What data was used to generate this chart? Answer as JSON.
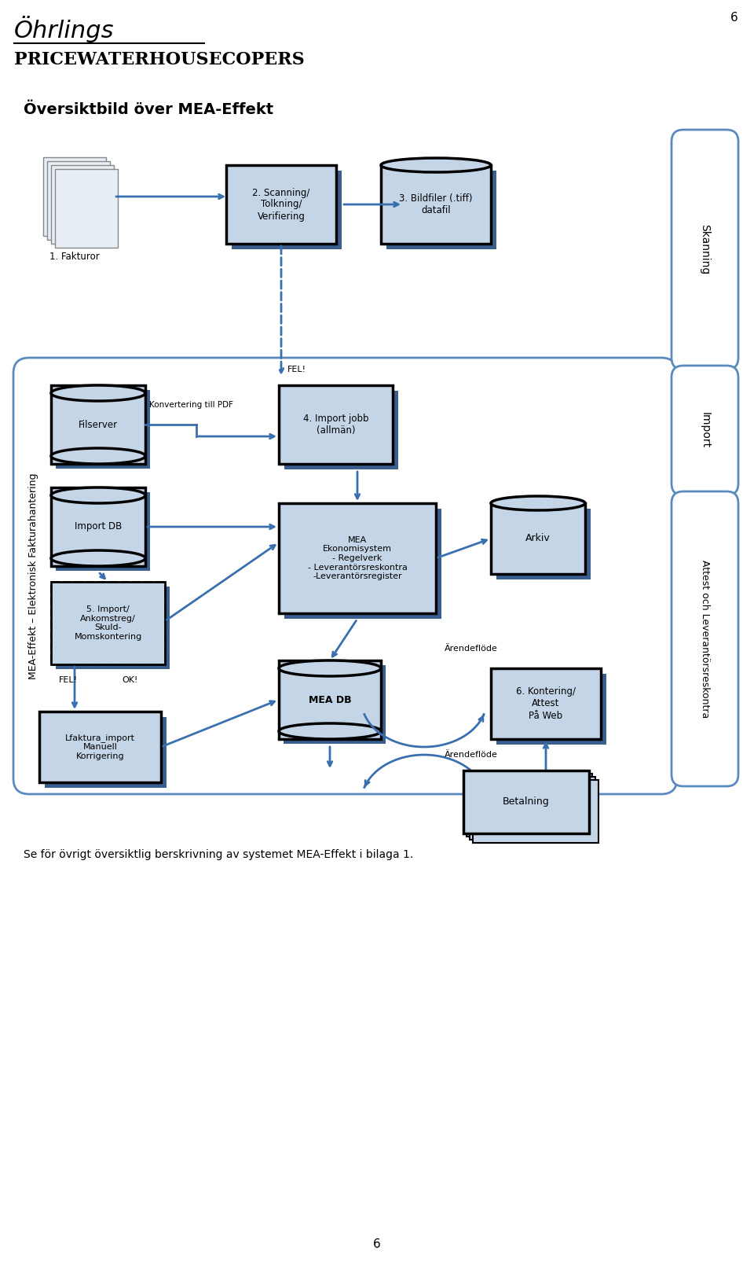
{
  "title_ohrlings": "Öhrlings",
  "title_pwc": "PRICEWATERHOUSECOPERS",
  "page_num": "6",
  "main_title": "Översiktbild över MEA-Effekt",
  "bottom_text": "Se för övrigt översiktlig berskrivning av systemet MEA-Effekt i bilaga 1.",
  "bottom_page": "6",
  "bg_color": "#ffffff",
  "box_fill_light": "#c5d5e8",
  "box_fill_dark": "#3a5f8f",
  "box_stroke": "#1a1a2e",
  "arrow_color": "#3a6faf",
  "outer_box_stroke": "#5a8abf",
  "sidebar_fill": "#ffffff",
  "sidebar_stroke": "#5a8abf"
}
